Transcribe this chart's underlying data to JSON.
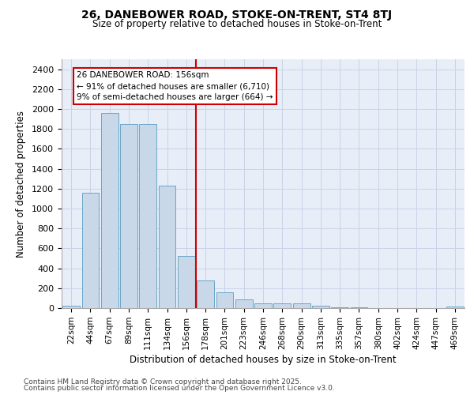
{
  "title1": "26, DANEBOWER ROAD, STOKE-ON-TRENT, ST4 8TJ",
  "title2": "Size of property relative to detached houses in Stoke-on-Trent",
  "xlabel": "Distribution of detached houses by size in Stoke-on-Trent",
  "ylabel": "Number of detached properties",
  "bins": [
    "22sqm",
    "44sqm",
    "67sqm",
    "89sqm",
    "111sqm",
    "134sqm",
    "156sqm",
    "178sqm",
    "201sqm",
    "223sqm",
    "246sqm",
    "268sqm",
    "290sqm",
    "313sqm",
    "335sqm",
    "357sqm",
    "380sqm",
    "402sqm",
    "424sqm",
    "447sqm",
    "469sqm"
  ],
  "values": [
    25,
    1160,
    1960,
    1850,
    1850,
    1230,
    520,
    275,
    155,
    90,
    50,
    45,
    45,
    20,
    10,
    5,
    3,
    2,
    2,
    2,
    15
  ],
  "bar_color": "#c8d8e8",
  "bar_edge_color": "#5a9cc5",
  "vline_color": "#cc0000",
  "annotation_text": "26 DANEBOWER ROAD: 156sqm\n← 91% of detached houses are smaller (6,710)\n9% of semi-detached houses are larger (664) →",
  "annotation_box_color": "#ffffff",
  "annotation_box_edge": "#cc0000",
  "ylim": [
    0,
    2500
  ],
  "yticks": [
    0,
    200,
    400,
    600,
    800,
    1000,
    1200,
    1400,
    1600,
    1800,
    2000,
    2200,
    2400
  ],
  "grid_color": "#c8d4e8",
  "bg_color": "#e8eef8",
  "footer1": "Contains HM Land Registry data © Crown copyright and database right 2025.",
  "footer2": "Contains public sector information licensed under the Open Government Licence v3.0."
}
